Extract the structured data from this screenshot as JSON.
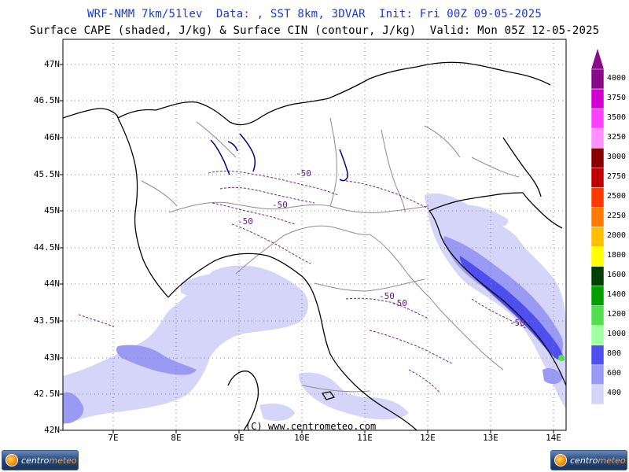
{
  "header": {
    "title_line1": "WRF-NMM 7km/51lev  Data: , SST 8km, 3DVAR  Init: Fri 00Z 09-05-2025",
    "title_line2": "Surface CAPE (shaded, J/kg) & Surface CIN (contour, J/kg)  Valid: Mon 05Z 12-05-2025"
  },
  "axes": {
    "lat_labels": [
      "47N",
      "46.5N",
      "46N",
      "45.5N",
      "45N",
      "44.5N",
      "44N",
      "43.5N",
      "43N",
      "42.5N",
      "42N"
    ],
    "lat_values": [
      47,
      46.5,
      46,
      45.5,
      45,
      44.5,
      44,
      43.5,
      43,
      42.5,
      42
    ],
    "lon_labels": [
      "7E",
      "8E",
      "9E",
      "10E",
      "11E",
      "12E",
      "13E",
      "14E"
    ],
    "lon_values": [
      7,
      8,
      9,
      10,
      11,
      12,
      13,
      14
    ]
  },
  "colorbar": {
    "labels": [
      "4000",
      "3750",
      "3500",
      "3250",
      "3000",
      "2750",
      "2500",
      "2250",
      "2000",
      "1800",
      "1600",
      "1400",
      "1200",
      "1000",
      "800",
      "600",
      "400"
    ],
    "colors": [
      "#8a0a8a",
      "#d000d0",
      "#ff40ff",
      "#ff90ff",
      "#8a0000",
      "#c00000",
      "#ff3a00",
      "#ff7a00",
      "#ffbe00",
      "#ffff00",
      "#004000",
      "#00a000",
      "#50e050",
      "#a0ffa0",
      "#4f4ff0",
      "#9a9af5",
      "#d5d5fa"
    ]
  },
  "contour_labels": [
    "-50",
    "-50",
    "-50",
    "-50",
    "-50",
    "-50"
  ],
  "footer": {
    "copyright": "(C) www.centrometeo.com",
    "logo_text_a": "centro",
    "logo_text_b": "meteo"
  }
}
